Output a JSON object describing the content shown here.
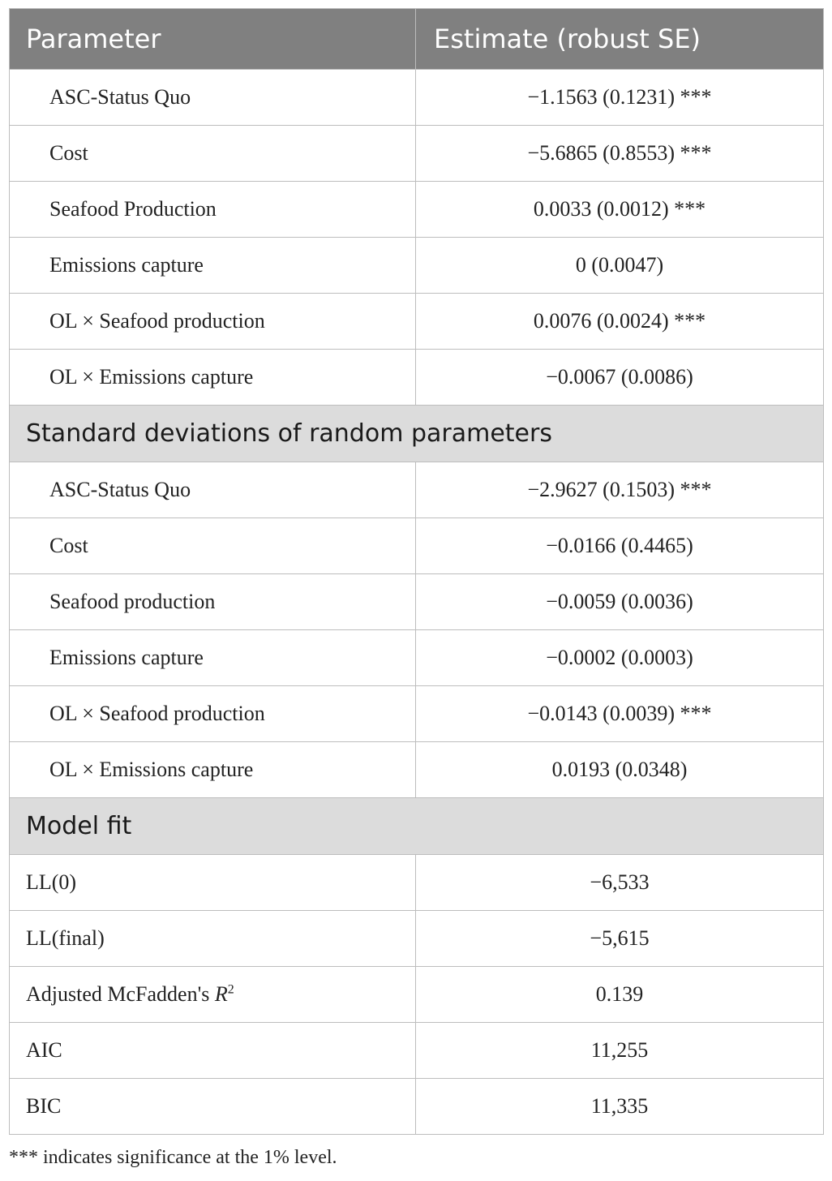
{
  "header": {
    "col1": "Parameter",
    "col2": "Estimate (robust SE)"
  },
  "means": [
    {
      "name": "ASC-Status Quo",
      "estimate": "−1.1563 (0.1231) ***"
    },
    {
      "name": "Cost",
      "estimate": "−5.6865 (0.8553) ***"
    },
    {
      "name": "Seafood Production",
      "estimate": "0.0033 (0.0012) ***"
    },
    {
      "name": "Emissions capture",
      "estimate": "0 (0.0047)"
    },
    {
      "name": "OL × Seafood production",
      "estimate": "0.0076 (0.0024) ***"
    },
    {
      "name": "OL × Emissions capture",
      "estimate": "−0.0067 (0.0086)"
    }
  ],
  "sd_section": {
    "title": "Standard deviations of random parameters"
  },
  "sds": [
    {
      "name": "ASC-Status Quo",
      "estimate": "−2.9627 (0.1503) ***"
    },
    {
      "name": "Cost",
      "estimate": "−0.0166 (0.4465)"
    },
    {
      "name": "Seafood production",
      "estimate": "−0.0059 (0.0036)"
    },
    {
      "name": "Emissions capture",
      "estimate": "−0.0002 (0.0003)"
    },
    {
      "name": "OL × Seafood production",
      "estimate": "−0.0143 (0.0039) ***"
    },
    {
      "name": "OL × Emissions capture",
      "estimate": "0.0193 (0.0348)"
    }
  ],
  "fit_section": {
    "title": "Model fit"
  },
  "fit": {
    "ll0": {
      "name": "LL(0)",
      "value": "−6,533"
    },
    "llfinal": {
      "name": "LL(final)",
      "value": "−5,615"
    },
    "r2": {
      "name_prefix": "Adjusted McFadden's ",
      "name_var": "R",
      "name_sup": "2",
      "value": "0.139"
    },
    "aic": {
      "name": "AIC",
      "value": "11,255"
    },
    "bic": {
      "name": "BIC",
      "value": "11,335"
    }
  },
  "footnote": "*** indicates significance at the 1% level."
}
